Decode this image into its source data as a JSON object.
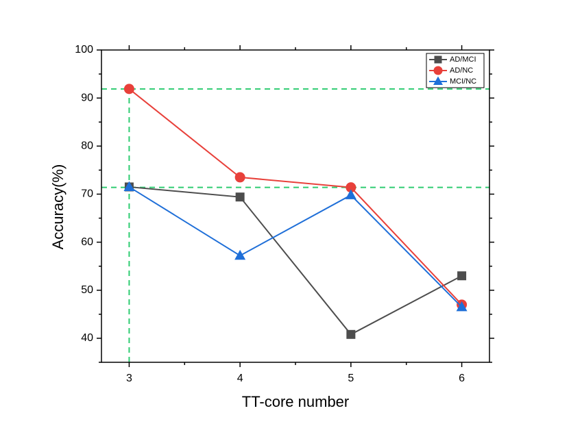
{
  "chart_data": {
    "type": "line",
    "x_label": "TT-core number",
    "y_label": "Accuracy(%)",
    "x": [
      3,
      4,
      5,
      6
    ],
    "series": [
      {
        "name": "AD/MCI",
        "color": "#4d4d4d",
        "marker": "square",
        "values": [
          71.5,
          69.4,
          40.8,
          53.0
        ]
      },
      {
        "name": "AD/NC",
        "color": "#e8403a",
        "marker": "circle",
        "values": [
          91.9,
          73.5,
          71.4,
          47.0
        ]
      },
      {
        "name": "MCI/NC",
        "color": "#1f6fd8",
        "marker": "triangle",
        "values": [
          71.5,
          57.2,
          69.8,
          46.5
        ]
      }
    ],
    "reference_lines": {
      "color": "#2ecc71",
      "y": [
        91.9,
        71.4
      ],
      "x": 3
    },
    "xlim": [
      2.75,
      6.25
    ],
    "ylim": [
      35,
      100
    ],
    "xticks": [
      3,
      4,
      5,
      6
    ],
    "yticks": [
      40,
      50,
      60,
      70,
      80,
      90,
      100
    ],
    "legend": "top-right"
  }
}
